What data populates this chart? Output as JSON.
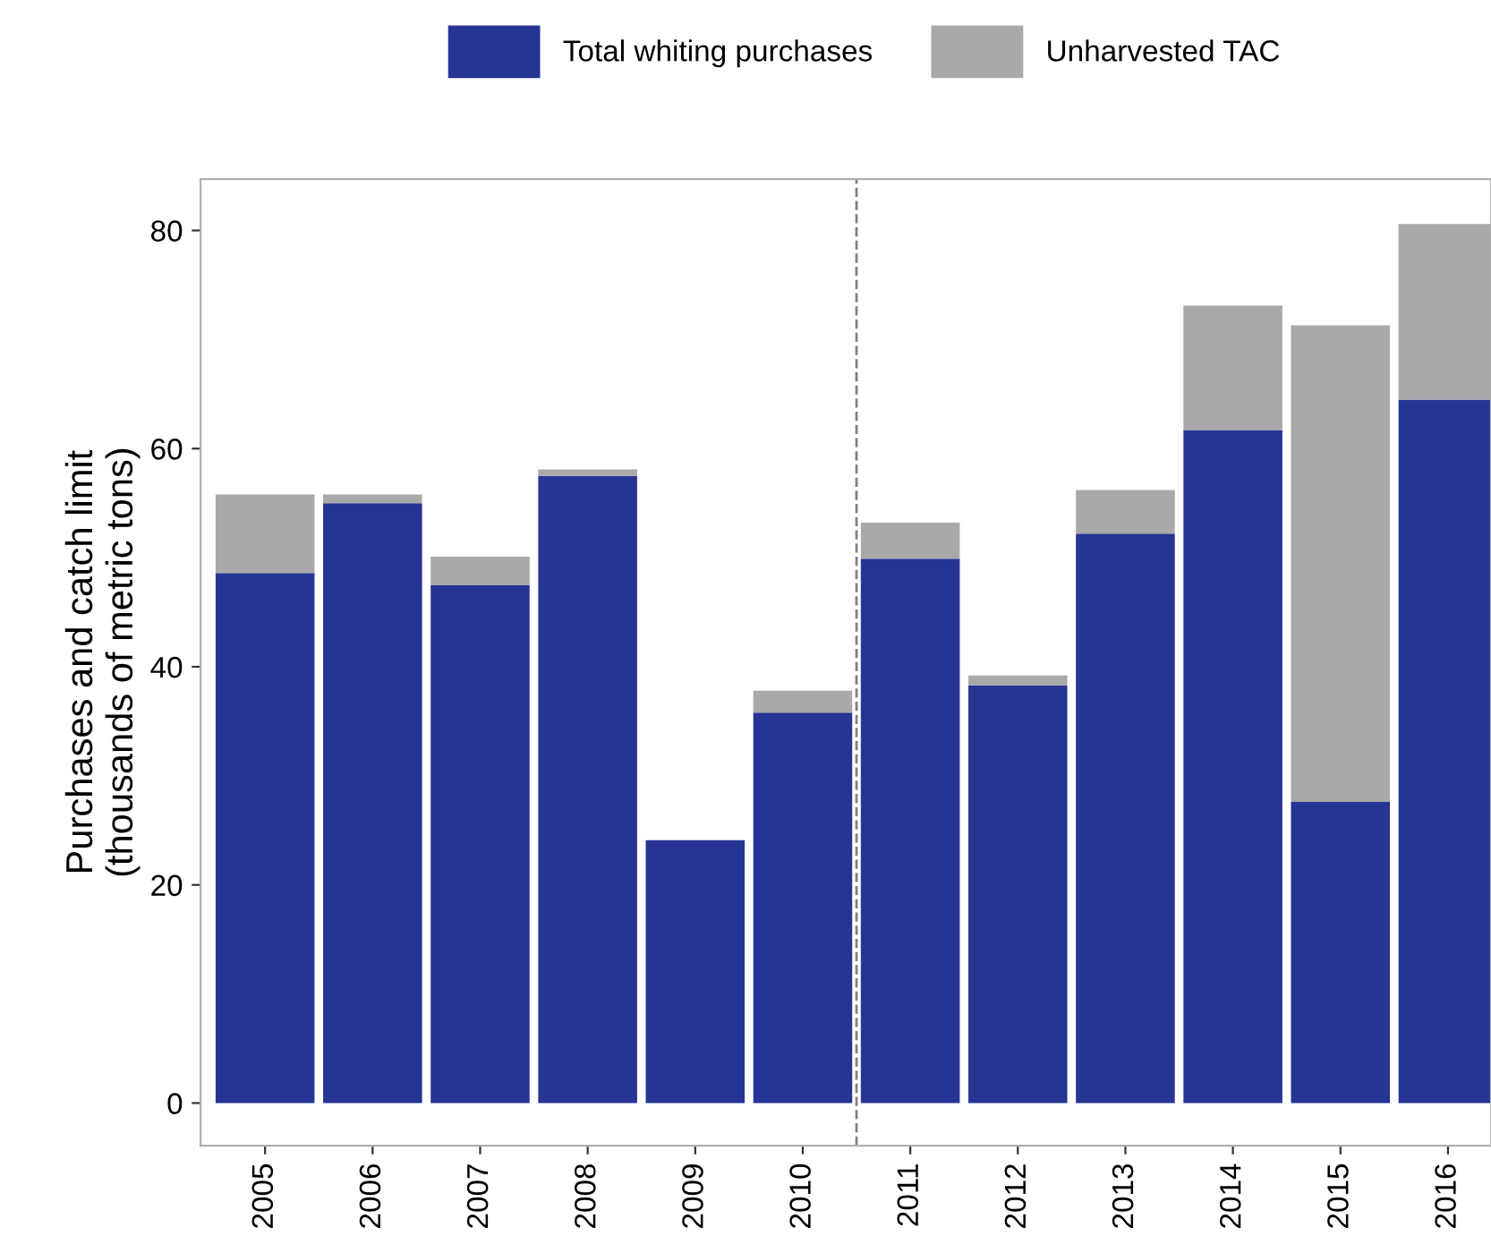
{
  "chart_data": {
    "type": "bar",
    "stacked": true,
    "ylabel": "Purchases and catch limit\n(thousands of metric tons)",
    "x": [
      2005,
      2006,
      2007,
      2008,
      2009,
      2010,
      2011,
      2012,
      2013,
      2014,
      2015,
      2016
    ],
    "series": [
      {
        "name": "Total whiting purchases",
        "color": "#263593",
        "values": [
          48.6,
          55.0,
          47.5,
          57.5,
          24.1,
          35.8,
          49.9,
          38.3,
          52.2,
          61.7,
          27.6,
          64.5
        ]
      },
      {
        "name": "Unharvested TAC",
        "color": "#a9a9a9",
        "values": [
          7.2,
          0.8,
          2.6,
          0.6,
          0,
          2.0,
          3.3,
          0.9,
          4.0,
          11.4,
          43.7,
          16.1
        ]
      }
    ],
    "xlim": [
      2004.4,
      2016.4
    ],
    "xticks": [
      2005,
      2006,
      2007,
      2008,
      2009,
      2010,
      2011,
      2012,
      2013,
      2014,
      2015,
      2016
    ],
    "ylim": [
      -3.9,
      84.7
    ],
    "yticks": [
      0,
      20,
      40,
      60,
      80
    ],
    "ref_lines": [
      {
        "axis": "x",
        "value": 2010.5,
        "color": "#808080",
        "line_style": "dashed"
      }
    ],
    "grid": false,
    "legend": "top"
  }
}
